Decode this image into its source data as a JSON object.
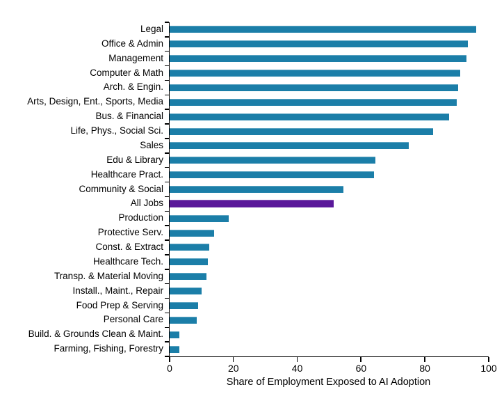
{
  "chart_data": {
    "type": "bar",
    "orientation": "horizontal",
    "title": "",
    "xlabel": "Share of Employment Exposed to AI Adoption",
    "ylabel": "",
    "xlim": [
      0,
      100
    ],
    "x_ticks": [
      0,
      20,
      40,
      60,
      80,
      100
    ],
    "grid": false,
    "legend": false,
    "bar_color": "#1B7EA8",
    "highlight_color": "#5A189A",
    "highlight_category": "All Jobs",
    "categories": [
      "Legal",
      "Office & Admin",
      "Management",
      "Computer & Math",
      "Arch. & Engin.",
      "Arts, Design, Ent., Sports, Media",
      "Bus. & Financial",
      "Life, Phys., Social Sci.",
      "Sales",
      "Edu & Library",
      "Healthcare Pract.",
      "Community & Social",
      "All Jobs",
      "Production",
      "Protective Serv.",
      "Const. & Extract",
      "Healthcare Tech.",
      "Transp. & Material Moving",
      "Install., Maint., Repair",
      "Food Prep & Serving",
      "Personal Care",
      "Build. & Grounds Clean & Maint.",
      "Farming, Fishing, Forestry"
    ],
    "values": [
      96,
      93.5,
      93,
      91,
      90.5,
      90,
      87.5,
      82.5,
      75,
      64.5,
      64,
      54.5,
      51.5,
      18.5,
      14,
      12.5,
      12,
      11.5,
      10,
      9,
      8.5,
      3,
      3
    ]
  }
}
